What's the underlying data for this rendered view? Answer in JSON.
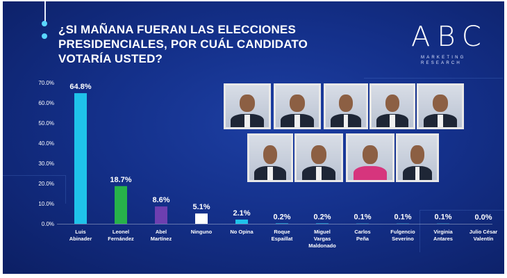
{
  "title": {
    "line1": "¿SI MAÑANA FUERAN LAS ELECCIONES",
    "line2": "PRESIDENCIALES, POR  CUÁL CANDIDATO",
    "line3": "VOTARÍA USTED?"
  },
  "logo": {
    "brand": "ABC",
    "sub1": "MARKETING",
    "sub2": "RESEARCH"
  },
  "colors": {
    "background": "#14308a",
    "bar_lightblue": "#1fc3ea",
    "bar_green": "#27b24a",
    "bar_purple": "#6d3fb0",
    "bar_white": "#ffffff",
    "text": "#ffffff"
  },
  "chart_data": {
    "type": "bar",
    "title": "¿SI MAÑANA FUERAN LAS ELECCIONES PRESIDENCIALES, POR  CUÁL CANDIDATO VOTARÍA USTED?",
    "categories": [
      [
        "Luis",
        "Abinader"
      ],
      [
        "Leonel",
        "Fernández"
      ],
      [
        "Abel",
        "Martínez"
      ],
      [
        "Ninguno"
      ],
      [
        "No Opina"
      ],
      [
        "Roque",
        "Espaillat"
      ],
      [
        "Miguel",
        "Vargas",
        "Maldonado"
      ],
      [
        "Carlos",
        "Peña"
      ],
      [
        "Fulgencio",
        "Severino"
      ],
      [
        "Virginia",
        "Antares"
      ],
      [
        "Julio César",
        "Valentín"
      ]
    ],
    "values": [
      64.8,
      18.7,
      8.6,
      5.1,
      2.1,
      0.2,
      0.2,
      0.1,
      0.1,
      0.1,
      0.0
    ],
    "value_labels": [
      "64.8%",
      "18.7%",
      "8.6%",
      "5.1%",
      "2.1%",
      "0.2%",
      "0.2%",
      "0.1%",
      "0.1%",
      "0.1%",
      "0.0%"
    ],
    "bar_colors": [
      "#1fc3ea",
      "#27b24a",
      "#6d3fb0",
      "#ffffff",
      "#1fc3ea",
      "#1fc3ea",
      "#1fc3ea",
      "#1fc3ea",
      "#1fc3ea",
      "#1fc3ea",
      "#1fc3ea"
    ],
    "yticks": [
      "0.0%",
      "10.0%",
      "20.0%",
      "30.0%",
      "40.0%",
      "50.0%",
      "60.0%",
      "70.0%"
    ],
    "ylim": [
      0,
      70
    ],
    "xlabel": "",
    "ylabel": "",
    "grid": false,
    "legend": "none"
  },
  "photos": [
    "candidate-photo-1",
    "candidate-photo-2",
    "candidate-photo-3",
    "candidate-photo-4",
    "candidate-photo-5",
    "candidate-photo-6",
    "candidate-photo-7",
    "candidate-photo-8",
    "candidate-photo-9"
  ]
}
